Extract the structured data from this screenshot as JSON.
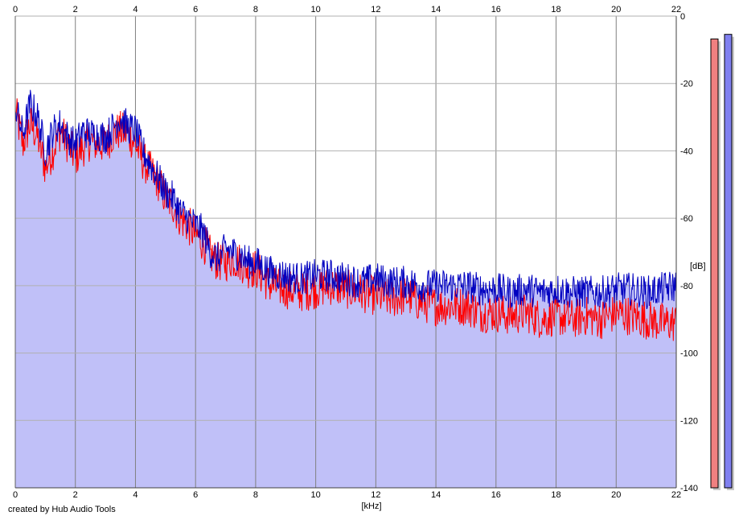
{
  "chart_data": {
    "type": "area",
    "title": "",
    "xlabel": "[kHz]",
    "ylabel": "[dB]",
    "xlim": [
      0,
      22
    ],
    "ylim": [
      -140,
      0
    ],
    "x_ticks": [
      0,
      2,
      4,
      6,
      8,
      10,
      12,
      14,
      16,
      18,
      20,
      22
    ],
    "y_ticks": [
      0,
      -20,
      -40,
      -60,
      -80,
      -100,
      -120,
      -140
    ],
    "x_tick_labels": [
      "0",
      "2",
      "4",
      "6",
      "8",
      "10",
      "12",
      "14",
      "16",
      "18",
      "20",
      "22"
    ],
    "y_tick_labels": [
      "0",
      "-20",
      "-40",
      "-60",
      "-80",
      "-100",
      "-120",
      "-140"
    ],
    "grid": true,
    "x": [
      0,
      0.25,
      0.5,
      0.75,
      1,
      1.25,
      1.5,
      1.75,
      2,
      2.25,
      2.5,
      2.75,
      3,
      3.25,
      3.5,
      3.75,
      4,
      4.25,
      4.5,
      4.75,
      5,
      5.25,
      5.5,
      5.75,
      6,
      6.25,
      6.5,
      6.75,
      7,
      7.25,
      7.5,
      7.75,
      8,
      8.5,
      9,
      9.5,
      10,
      10.5,
      11,
      11.5,
      12,
      12.5,
      13,
      13.5,
      14,
      14.5,
      15,
      15.5,
      16,
      16.5,
      17,
      17.5,
      18,
      18.5,
      19,
      19.5,
      20,
      20.5,
      21,
      21.5,
      22
    ],
    "series": [
      {
        "color": "#ff0000",
        "values": [
          -28,
          -38,
          -32,
          -36,
          -45,
          -40,
          -34,
          -38,
          -42,
          -39,
          -37,
          -38,
          -38,
          -35,
          -34,
          -35,
          -38,
          -43,
          -46,
          -49,
          -54,
          -56,
          -60,
          -62,
          -65,
          -67,
          -71,
          -73,
          -73,
          -72,
          -73,
          -75,
          -75,
          -80,
          -81,
          -82,
          -81,
          -80,
          -81,
          -82,
          -83,
          -84,
          -83,
          -85,
          -86,
          -86,
          -86,
          -88,
          -88,
          -89,
          -88,
          -90,
          -89,
          -90,
          -89,
          -90,
          -88,
          -89,
          -90,
          -91,
          -91
        ]
      },
      {
        "color": "#0000c0",
        "values": [
          -27,
          -35,
          -26,
          -30,
          -40,
          -34,
          -32,
          -36,
          -38,
          -34,
          -35,
          -35,
          -36,
          -33,
          -30,
          -33,
          -34,
          -40,
          -44,
          -48,
          -52,
          -54,
          -58,
          -60,
          -62,
          -64,
          -70,
          -72,
          -69,
          -70,
          -71,
          -73,
          -73,
          -76,
          -77,
          -78,
          -77,
          -77,
          -78,
          -79,
          -78,
          -79,
          -79,
          -80,
          -80,
          -80,
          -80,
          -81,
          -81,
          -82,
          -81,
          -82,
          -81,
          -82,
          -82,
          -82,
          -81,
          -81,
          -82,
          -81,
          -80
        ]
      }
    ],
    "fill_color": "#c0c0f8",
    "level_meters": [
      {
        "color": "#f08080",
        "level": 0.98
      },
      {
        "color": "#8080f0",
        "level": 0.99
      }
    ]
  },
  "footer": {
    "credit": "created by Hub Audio Tools"
  }
}
